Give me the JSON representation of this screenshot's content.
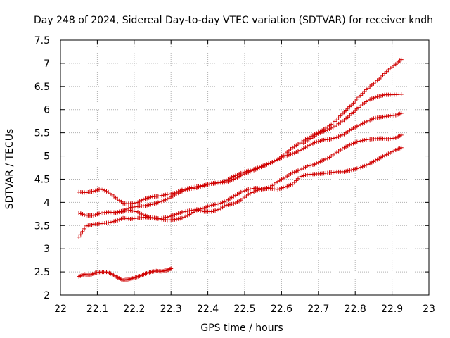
{
  "chart_data": {
    "type": "scatter",
    "title": "Day 248 of 2024, Sidereal Day-to-day VTEC variation (SDTVAR) for receiver kndh",
    "xlabel": "GPS time / hours",
    "ylabel": "SDTVAR / TECUs",
    "xlim": [
      22,
      23
    ],
    "ylim": [
      2,
      7.5
    ],
    "xticks": [
      22,
      22.1,
      22.2,
      22.3,
      22.4,
      22.5,
      22.6,
      22.7,
      22.8,
      22.9,
      23
    ],
    "xtick_labels": [
      "22",
      "22.1",
      "22.2",
      "22.3",
      "22.4",
      "22.5",
      "22.6",
      "22.7",
      "22.8",
      "22.9",
      "23"
    ],
    "yticks": [
      2,
      2.5,
      3,
      3.5,
      4,
      4.5,
      5,
      5.5,
      6,
      6.5,
      7,
      7.5
    ],
    "ytick_labels": [
      "2",
      "2.5",
      "3",
      "3.5",
      "4",
      "4.5",
      "5",
      "5.5",
      "6",
      "6.5",
      "7",
      "7.5"
    ],
    "grid": true,
    "marker": "+",
    "series_color": "#d00000",
    "series": [
      {
        "name": "track-1",
        "x": [
          22.05,
          22.07,
          22.09,
          22.11,
          22.13,
          22.15,
          22.17,
          22.19,
          22.21,
          22.23,
          22.25,
          22.27,
          22.29,
          22.31,
          22.33,
          22.35,
          22.37,
          22.39,
          22.41,
          22.43,
          22.45,
          22.47,
          22.49,
          22.51,
          22.53,
          22.55,
          22.57,
          22.59,
          22.61,
          22.63,
          22.65,
          22.67,
          22.69,
          22.71,
          22.73,
          22.75,
          22.77,
          22.79,
          22.81,
          22.83,
          22.85,
          22.87,
          22.89,
          22.91,
          22.925
        ],
        "values": [
          4.22,
          4.21,
          4.24,
          4.29,
          4.22,
          4.1,
          3.98,
          3.97,
          4.0,
          4.08,
          4.12,
          4.14,
          4.17,
          4.2,
          4.27,
          4.31,
          4.34,
          4.37,
          4.4,
          4.42,
          4.43,
          4.5,
          4.58,
          4.65,
          4.71,
          4.78,
          4.85,
          4.93,
          5.05,
          5.18,
          5.28,
          5.38,
          5.47,
          5.55,
          5.65,
          5.78,
          5.95,
          6.1,
          6.27,
          6.43,
          6.56,
          6.7,
          6.86,
          6.98,
          7.08
        ]
      },
      {
        "name": "track-2",
        "x": [
          22.05,
          22.07,
          22.09,
          22.11,
          22.13,
          22.15,
          22.17,
          22.19,
          22.21,
          22.23,
          22.25,
          22.27,
          22.29,
          22.31,
          22.33,
          22.35,
          22.37,
          22.39,
          22.41,
          22.43,
          22.45,
          22.47,
          22.49,
          22.51,
          22.53,
          22.55,
          22.57,
          22.59,
          22.61,
          22.63,
          22.65,
          22.67,
          22.69,
          22.71,
          22.73,
          22.75,
          22.77,
          22.79,
          22.81,
          22.83,
          22.85,
          22.87,
          22.89,
          22.91,
          22.925
        ],
        "values": [
          3.25,
          3.49,
          3.53,
          3.54,
          3.56,
          3.6,
          3.66,
          3.64,
          3.66,
          3.68,
          3.67,
          3.65,
          3.68,
          3.73,
          3.79,
          3.82,
          3.85,
          3.8,
          3.8,
          3.85,
          3.94,
          3.97,
          4.05,
          4.17,
          4.25,
          4.29,
          4.3,
          4.28,
          4.33,
          4.39,
          4.55,
          4.6,
          4.61,
          4.62,
          4.64,
          4.66,
          4.66,
          4.7,
          4.74,
          4.8,
          4.88,
          4.97,
          5.05,
          5.13,
          5.18
        ]
      },
      {
        "name": "track-3",
        "x": [
          22.05,
          22.07,
          22.09,
          22.11,
          22.13,
          22.15,
          22.17,
          22.19,
          22.21,
          22.23,
          22.25,
          22.27,
          22.29,
          22.31,
          22.33,
          22.35,
          22.37,
          22.39,
          22.41,
          22.43,
          22.45,
          22.47,
          22.49,
          22.51,
          22.53,
          22.55,
          22.57,
          22.59,
          22.61,
          22.63,
          22.65,
          22.67,
          22.69,
          22.71,
          22.73,
          22.75,
          22.77,
          22.79,
          22.81,
          22.83,
          22.85,
          22.87,
          22.89,
          22.91,
          22.925
        ],
        "values": [
          3.77,
          3.72,
          3.72,
          3.77,
          3.79,
          3.78,
          3.8,
          3.83,
          3.79,
          3.71,
          3.66,
          3.64,
          3.62,
          3.63,
          3.66,
          3.74,
          3.83,
          3.88,
          3.94,
          3.97,
          4.03,
          4.13,
          4.22,
          4.28,
          4.31,
          4.29,
          4.33,
          4.45,
          4.54,
          4.64,
          4.7,
          4.78,
          4.82,
          4.9,
          4.97,
          5.08,
          5.18,
          5.26,
          5.32,
          5.35,
          5.37,
          5.38,
          5.37,
          5.39,
          5.45
        ]
      },
      {
        "name": "track-4",
        "x": [
          22.05,
          22.07,
          22.09,
          22.11,
          22.13,
          22.15,
          22.17,
          22.19,
          22.21,
          22.23,
          22.25,
          22.27,
          22.29,
          22.31,
          22.33,
          22.35,
          22.37,
          22.39,
          22.41,
          22.43,
          22.45,
          22.47,
          22.49,
          22.51,
          22.53,
          22.55,
          22.57,
          22.59,
          22.61,
          22.63,
          22.65,
          22.67,
          22.69,
          22.71,
          22.73,
          22.75,
          22.77,
          22.79,
          22.81,
          22.83,
          22.85,
          22.87,
          22.89,
          22.91,
          22.925
        ],
        "values": [
          3.77,
          3.72,
          3.72,
          3.77,
          3.79,
          3.78,
          3.82,
          3.89,
          3.91,
          3.93,
          3.96,
          4.01,
          4.07,
          4.16,
          4.24,
          4.29,
          4.31,
          4.36,
          4.41,
          4.43,
          4.47,
          4.56,
          4.63,
          4.68,
          4.73,
          4.79,
          4.85,
          4.92,
          5.0,
          5.05,
          5.12,
          5.21,
          5.29,
          5.34,
          5.36,
          5.4,
          5.47,
          5.58,
          5.66,
          5.74,
          5.81,
          5.84,
          5.86,
          5.88,
          5.92
        ]
      },
      {
        "name": "track-5",
        "x": [
          22.66,
          22.68,
          22.7,
          22.72,
          22.74,
          22.76,
          22.78,
          22.8,
          22.82,
          22.84,
          22.86,
          22.88,
          22.9,
          22.925
        ],
        "values": [
          5.28,
          5.38,
          5.48,
          5.55,
          5.62,
          5.72,
          5.84,
          5.98,
          6.12,
          6.22,
          6.28,
          6.32,
          6.32,
          6.33
        ]
      },
      {
        "name": "track-6",
        "x": [
          22.05,
          22.065,
          22.08,
          22.095,
          22.11,
          22.125,
          22.14,
          22.155,
          22.17,
          22.185,
          22.2,
          22.215,
          22.23,
          22.245,
          22.26,
          22.275,
          22.29,
          22.3
        ],
        "values": [
          2.4,
          2.45,
          2.43,
          2.48,
          2.5,
          2.5,
          2.45,
          2.38,
          2.32,
          2.34,
          2.37,
          2.41,
          2.46,
          2.5,
          2.52,
          2.51,
          2.54,
          2.57
        ]
      }
    ]
  }
}
